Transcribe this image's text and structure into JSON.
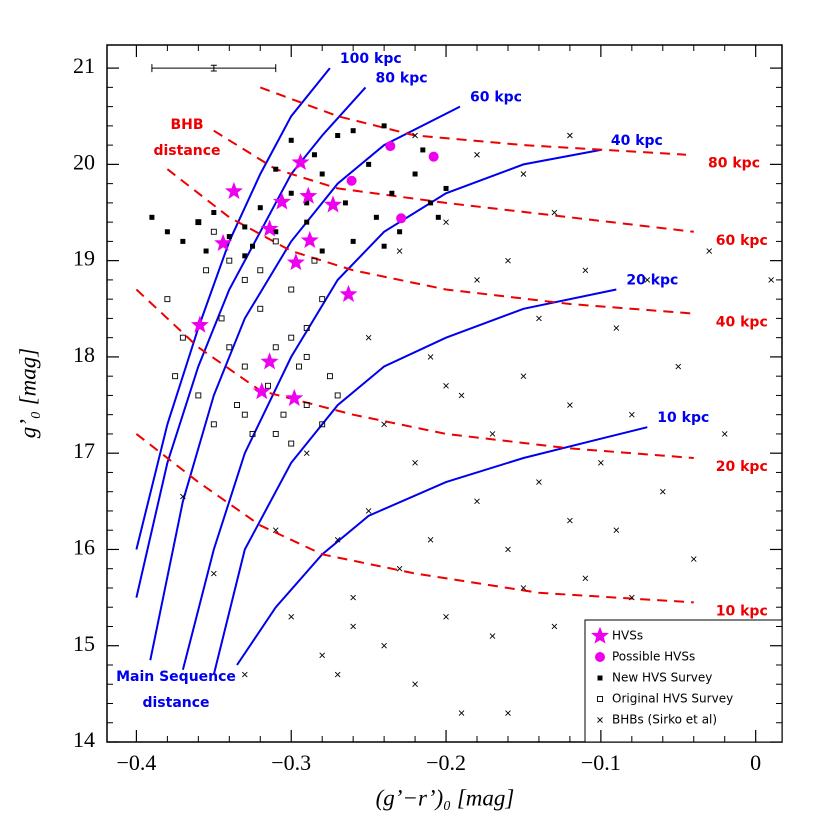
{
  "chart_data": {
    "type": "scatter",
    "x_label": "(g’−r’)₀ [mag]",
    "y_label": "g’₀ [mag]",
    "xlim": [
      -0.419,
      0.017
    ],
    "ylim": [
      14,
      21.24
    ],
    "xticks": [
      {
        "value": -0.4,
        "label": "−0.4"
      },
      {
        "value": -0.3,
        "label": "−0.3"
      },
      {
        "value": -0.2,
        "label": "−0.2"
      },
      {
        "value": -0.1,
        "label": "−0.1"
      },
      0
    ],
    "yticks": [
      14,
      15,
      16,
      17,
      18,
      19,
      20,
      21
    ],
    "annotations": [
      "BHB",
      "distance",
      "Main Sequence",
      "distance"
    ],
    "legend_position": "lower right",
    "error_bar": {
      "x": -0.35,
      "y": 21.0,
      "xerr": 0.04,
      "yerr": 0.03
    },
    "curves": [
      {
        "label": "100 kpc",
        "color": "#0000ee",
        "dashed": false,
        "x": [
          -0.4,
          -0.38,
          -0.36,
          -0.34,
          -0.32,
          -0.3,
          -0.275
        ],
        "y": [
          16.0,
          17.3,
          18.3,
          19.2,
          19.9,
          20.5,
          21.0
        ]
      },
      {
        "label": "80 kpc",
        "color": "#0000ee",
        "dashed": false,
        "x": [
          -0.4,
          -0.38,
          -0.36,
          -0.34,
          -0.32,
          -0.3,
          -0.28,
          -0.252
        ],
        "y": [
          15.5,
          16.9,
          17.9,
          18.7,
          19.3,
          19.9,
          20.3,
          20.8
        ]
      },
      {
        "label": "60 kpc",
        "color": "#0000ee",
        "dashed": false,
        "x": [
          -0.391,
          -0.37,
          -0.35,
          -0.33,
          -0.3,
          -0.27,
          -0.24,
          -0.191
        ],
        "y": [
          14.85,
          16.5,
          17.6,
          18.4,
          19.2,
          19.8,
          20.2,
          20.6
        ]
      },
      {
        "label": "40 kpc",
        "color": "#0000ee",
        "dashed": false,
        "x": [
          -0.37,
          -0.35,
          -0.33,
          -0.3,
          -0.27,
          -0.24,
          -0.2,
          -0.15,
          -0.1
        ],
        "y": [
          14.75,
          16.0,
          17.0,
          18.0,
          18.8,
          19.3,
          19.7,
          20.0,
          20.15
        ]
      },
      {
        "label": "20 kpc",
        "color": "#0000ee",
        "dashed": false,
        "x": [
          -0.35,
          -0.33,
          -0.3,
          -0.27,
          -0.24,
          -0.2,
          -0.15,
          -0.09
        ],
        "y": [
          14.7,
          16.0,
          16.9,
          17.5,
          17.9,
          18.2,
          18.5,
          18.7
        ]
      },
      {
        "label": "10 kpc",
        "color": "#0000ee",
        "dashed": false,
        "x": [
          -0.335,
          -0.31,
          -0.28,
          -0.25,
          -0.2,
          -0.15,
          -0.1,
          -0.07
        ],
        "y": [
          14.8,
          15.4,
          15.95,
          16.35,
          16.7,
          16.95,
          17.15,
          17.27
        ]
      },
      {
        "label": "80 kpc",
        "color": "#ee0000",
        "dashed": true,
        "x": [
          -0.32,
          -0.27,
          -0.22,
          -0.15,
          -0.045
        ],
        "y": [
          20.8,
          20.5,
          20.3,
          20.2,
          20.1
        ]
      },
      {
        "label": "60 kpc",
        "color": "#ee0000",
        "dashed": true,
        "x": [
          -0.35,
          -0.31,
          -0.27,
          -0.2,
          -0.12,
          -0.04
        ],
        "y": [
          20.35,
          19.95,
          19.75,
          19.6,
          19.45,
          19.3
        ]
      },
      {
        "label": "40 kpc",
        "color": "#ee0000",
        "dashed": true,
        "x": [
          -0.38,
          -0.34,
          -0.3,
          -0.26,
          -0.2,
          -0.12,
          -0.04
        ],
        "y": [
          19.95,
          19.45,
          19.1,
          18.9,
          18.7,
          18.55,
          18.45
        ]
      },
      {
        "label": "20 kpc",
        "color": "#ee0000",
        "dashed": true,
        "x": [
          -0.4,
          -0.36,
          -0.32,
          -0.26,
          -0.2,
          -0.12,
          -0.04
        ],
        "y": [
          18.7,
          18.1,
          17.65,
          17.4,
          17.2,
          17.05,
          16.95
        ]
      },
      {
        "label": "10 kpc",
        "color": "#ee0000",
        "dashed": true,
        "x": [
          -0.4,
          -0.36,
          -0.32,
          -0.28,
          -0.22,
          -0.14,
          -0.04
        ],
        "y": [
          17.2,
          16.7,
          16.25,
          15.95,
          15.75,
          15.55,
          15.45
        ]
      }
    ],
    "series": [
      {
        "name": "BHBs (Sirko et al)",
        "marker": "cross",
        "color": "#000000",
        "x": [
          -0.37,
          -0.35,
          -0.33,
          -0.31,
          -0.3,
          -0.29,
          -0.28,
          -0.27,
          -0.26,
          -0.25,
          -0.25,
          -0.24,
          -0.24,
          -0.23,
          -0.23,
          -0.22,
          -0.22,
          -0.21,
          -0.21,
          -0.2,
          -0.2,
          -0.19,
          -0.19,
          -0.18,
          -0.18,
          -0.17,
          -0.17,
          -0.16,
          -0.16,
          -0.15,
          -0.15,
          -0.14,
          -0.14,
          -0.13,
          -0.13,
          -0.12,
          -0.12,
          -0.11,
          -0.11,
          -0.1,
          -0.1,
          -0.09,
          -0.09,
          -0.08,
          -0.08,
          -0.07,
          -0.06,
          -0.05,
          -0.04,
          -0.03,
          -0.02,
          0.01,
          -0.27,
          -0.26,
          -0.22,
          -0.18,
          -0.15,
          -0.12,
          -0.2,
          -0.16
        ],
        "y": [
          16.55,
          15.75,
          14.7,
          16.2,
          15.3,
          17.0,
          14.9,
          16.1,
          15.5,
          18.2,
          16.4,
          15.0,
          17.3,
          19.1,
          15.8,
          16.9,
          14.6,
          18.0,
          16.1,
          19.4,
          15.3,
          17.6,
          14.3,
          18.8,
          16.5,
          17.2,
          15.1,
          19.0,
          16.0,
          17.8,
          15.6,
          18.4,
          16.7,
          19.5,
          15.2,
          17.5,
          16.3,
          18.9,
          15.7,
          16.9,
          14.9,
          18.3,
          16.2,
          17.4,
          15.5,
          18.8,
          16.6,
          17.9,
          15.9,
          19.1,
          17.2,
          18.8,
          14.7,
          15.2,
          20.3,
          20.1,
          19.9,
          20.3,
          17.7,
          14.3
        ]
      },
      {
        "name": "Original HVS Survey",
        "marker": "open-square",
        "color": "#000000",
        "x": [
          -0.38,
          -0.375,
          -0.37,
          -0.36,
          -0.355,
          -0.35,
          -0.345,
          -0.34,
          -0.335,
          -0.33,
          -0.33,
          -0.325,
          -0.32,
          -0.315,
          -0.31,
          -0.31,
          -0.305,
          -0.3,
          -0.3,
          -0.295,
          -0.29,
          -0.29,
          -0.285,
          -0.28,
          -0.28,
          -0.275,
          -0.27,
          -0.34,
          -0.32,
          -0.3,
          -0.35,
          -0.36,
          -0.31,
          -0.29,
          -0.33
        ],
        "y": [
          18.6,
          17.8,
          18.2,
          17.6,
          18.9,
          17.3,
          18.4,
          19.0,
          17.5,
          18.8,
          17.9,
          17.2,
          18.5,
          17.7,
          19.2,
          18.1,
          17.4,
          18.7,
          17.1,
          17.9,
          18.3,
          17.5,
          19.0,
          17.3,
          18.6,
          17.8,
          17.6,
          18.1,
          18.9,
          18.2,
          19.3,
          19.4,
          17.2,
          18.0,
          17.4
        ]
      },
      {
        "name": "New HVS Survey",
        "marker": "filled-square",
        "color": "#000000",
        "x": [
          -0.39,
          -0.38,
          -0.37,
          -0.36,
          -0.355,
          -0.35,
          -0.34,
          -0.33,
          -0.325,
          -0.32,
          -0.31,
          -0.3,
          -0.3,
          -0.29,
          -0.285,
          -0.28,
          -0.27,
          -0.265,
          -0.26,
          -0.25,
          -0.245,
          -0.24,
          -0.235,
          -0.23,
          -0.22,
          -0.215,
          -0.21,
          -0.205,
          -0.2,
          -0.28,
          -0.31,
          -0.26,
          -0.33,
          -0.24,
          -0.29
        ],
        "y": [
          19.45,
          19.3,
          19.2,
          19.4,
          19.1,
          19.5,
          19.25,
          19.35,
          19.15,
          19.55,
          19.3,
          19.7,
          20.25,
          19.4,
          20.1,
          19.9,
          20.3,
          19.6,
          19.2,
          20.0,
          19.45,
          20.4,
          19.7,
          19.3,
          19.9,
          20.15,
          19.6,
          19.45,
          19.75,
          19.1,
          19.95,
          20.35,
          19.05,
          19.15,
          19.6
        ]
      },
      {
        "name": "Possible HVSs",
        "marker": "circle",
        "color": "#ee00ee",
        "x": [
          -0.236,
          -0.208,
          -0.261,
          -0.229
        ],
        "y": [
          20.19,
          20.08,
          19.83,
          19.44
        ]
      },
      {
        "name": "HVSs",
        "marker": "star",
        "color": "#ee00ee",
        "x": [
          -0.359,
          -0.314,
          -0.319,
          -0.298,
          -0.297,
          -0.263,
          -0.337,
          -0.294,
          -0.306,
          -0.289,
          -0.314,
          -0.344,
          -0.273,
          -0.288
        ],
        "y": [
          18.33,
          17.95,
          17.64,
          17.57,
          18.98,
          18.65,
          19.72,
          20.02,
          19.61,
          19.67,
          19.33,
          19.18,
          19.58,
          19.21
        ]
      }
    ]
  }
}
